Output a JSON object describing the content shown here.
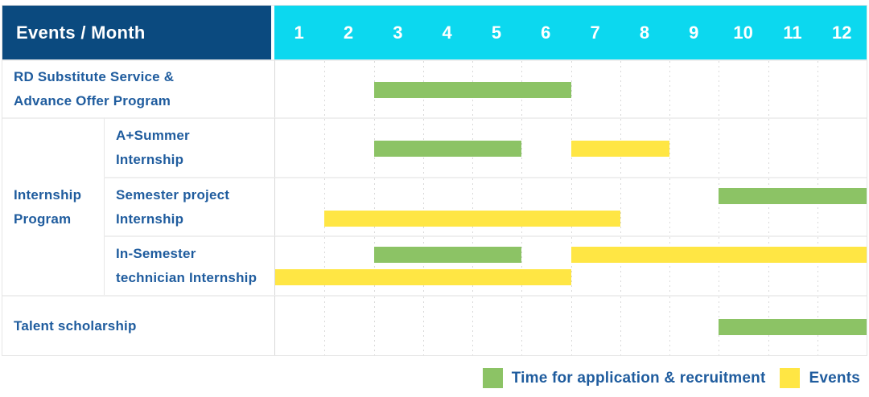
{
  "table": {
    "header": {
      "title": "Events / Month",
      "title_bg": "#0B4A7F",
      "months_bg": "#0CD8EF",
      "months": [
        "1",
        "2",
        "3",
        "4",
        "5",
        "6",
        "7",
        "8",
        "9",
        "10",
        "11",
        "12"
      ]
    },
    "text_color": "#1F5C9E",
    "labels": {
      "row1": {
        "line1": "RD Substitute Service &",
        "line2": "Advance Offer Program"
      },
      "group": {
        "line1": "Internship",
        "line2": "Program"
      },
      "row2": {
        "line1": "A+Summer",
        "line2": "Internship"
      },
      "row3": {
        "line1": "Semester project",
        "line2": "Internship"
      },
      "row4": {
        "line1": "In-Semester",
        "line2": "technician Internship"
      },
      "row5": {
        "line1": "Talent scholarship"
      }
    }
  },
  "chart_data": {
    "type": "bar",
    "variant": "gantt-timeline",
    "title": "Events / Month",
    "x_categories": [
      1,
      2,
      3,
      4,
      5,
      6,
      7,
      8,
      9,
      10,
      11,
      12
    ],
    "x_range": [
      1,
      12
    ],
    "grid": true,
    "legend_position": "bottom-right",
    "colors": {
      "application_recruitment": "#8CC365",
      "events": "#FFE644"
    },
    "rows": [
      {
        "label": "RD Substitute Service & Advance Offer Program",
        "group": null,
        "bars": [
          {
            "color": "application_recruitment",
            "start_month": 3,
            "end_month": 6,
            "line": "center"
          }
        ]
      },
      {
        "label": "A+Summer Internship",
        "group": "Internship Program",
        "bars": [
          {
            "color": "application_recruitment",
            "start_month": 3,
            "end_month": 5,
            "line": "center"
          },
          {
            "color": "events",
            "start_month": 7,
            "end_month": 8,
            "line": "center"
          }
        ]
      },
      {
        "label": "Semester project Internship",
        "group": "Internship Program",
        "bars": [
          {
            "color": "application_recruitment",
            "start_month": 10,
            "end_month": 12,
            "line": "top"
          },
          {
            "color": "events",
            "start_month": 2,
            "end_month": 7,
            "line": "bottom"
          }
        ]
      },
      {
        "label": "In-Semester technician Internship",
        "group": "Internship Program",
        "bars": [
          {
            "color": "application_recruitment",
            "start_month": 3,
            "end_month": 5,
            "line": "top"
          },
          {
            "color": "events",
            "start_month": 7,
            "end_month": 12,
            "line": "top"
          },
          {
            "color": "events",
            "start_month": 1,
            "end_month": 6,
            "line": "bottom"
          }
        ]
      },
      {
        "label": "Talent scholarship",
        "group": null,
        "bars": [
          {
            "color": "application_recruitment",
            "start_month": 10,
            "end_month": 12,
            "line": "center"
          }
        ]
      }
    ],
    "legend": [
      {
        "label": "Time for application & recruitment",
        "color_key": "application_recruitment",
        "color": "#8CC365"
      },
      {
        "label": "Events",
        "color_key": "events",
        "color": "#FFE644"
      }
    ]
  }
}
